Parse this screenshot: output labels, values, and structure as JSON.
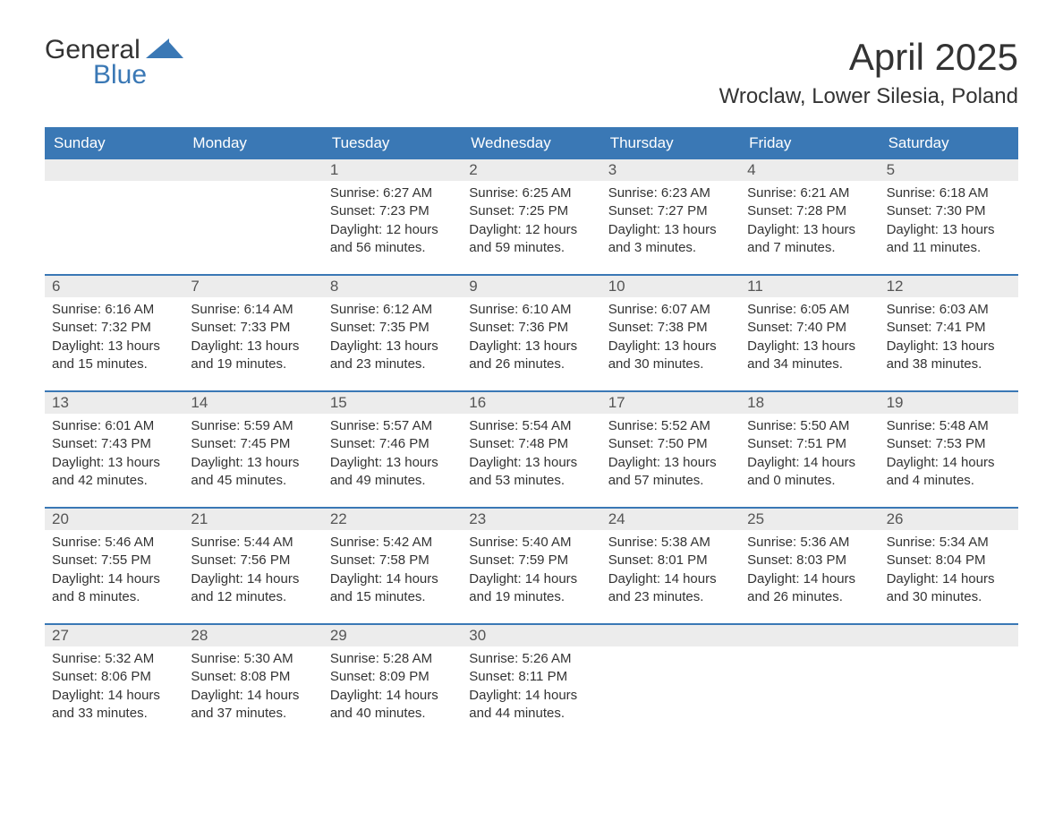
{
  "logo": {
    "word1": "General",
    "word2": "Blue"
  },
  "title": "April 2025",
  "location": "Wroclaw, Lower Silesia, Poland",
  "colors": {
    "header_bg": "#3a78b5",
    "header_text": "#ffffff",
    "date_row_bg": "#ececec",
    "body_text": "#333333",
    "logo_blue": "#3a78b5",
    "week_divider": "#3a78b5",
    "page_bg": "#ffffff"
  },
  "typography": {
    "title_fontsize": 42,
    "location_fontsize": 24,
    "header_fontsize": 17,
    "date_fontsize": 17,
    "body_fontsize": 15
  },
  "days_of_week": [
    "Sunday",
    "Monday",
    "Tuesday",
    "Wednesday",
    "Thursday",
    "Friday",
    "Saturday"
  ],
  "weeks": [
    [
      {},
      {},
      {
        "date": "1",
        "sunrise": "Sunrise: 6:27 AM",
        "sunset": "Sunset: 7:23 PM",
        "day1": "Daylight: 12 hours",
        "day2": "and 56 minutes."
      },
      {
        "date": "2",
        "sunrise": "Sunrise: 6:25 AM",
        "sunset": "Sunset: 7:25 PM",
        "day1": "Daylight: 12 hours",
        "day2": "and 59 minutes."
      },
      {
        "date": "3",
        "sunrise": "Sunrise: 6:23 AM",
        "sunset": "Sunset: 7:27 PM",
        "day1": "Daylight: 13 hours",
        "day2": "and 3 minutes."
      },
      {
        "date": "4",
        "sunrise": "Sunrise: 6:21 AM",
        "sunset": "Sunset: 7:28 PM",
        "day1": "Daylight: 13 hours",
        "day2": "and 7 minutes."
      },
      {
        "date": "5",
        "sunrise": "Sunrise: 6:18 AM",
        "sunset": "Sunset: 7:30 PM",
        "day1": "Daylight: 13 hours",
        "day2": "and 11 minutes."
      }
    ],
    [
      {
        "date": "6",
        "sunrise": "Sunrise: 6:16 AM",
        "sunset": "Sunset: 7:32 PM",
        "day1": "Daylight: 13 hours",
        "day2": "and 15 minutes."
      },
      {
        "date": "7",
        "sunrise": "Sunrise: 6:14 AM",
        "sunset": "Sunset: 7:33 PM",
        "day1": "Daylight: 13 hours",
        "day2": "and 19 minutes."
      },
      {
        "date": "8",
        "sunrise": "Sunrise: 6:12 AM",
        "sunset": "Sunset: 7:35 PM",
        "day1": "Daylight: 13 hours",
        "day2": "and 23 minutes."
      },
      {
        "date": "9",
        "sunrise": "Sunrise: 6:10 AM",
        "sunset": "Sunset: 7:36 PM",
        "day1": "Daylight: 13 hours",
        "day2": "and 26 minutes."
      },
      {
        "date": "10",
        "sunrise": "Sunrise: 6:07 AM",
        "sunset": "Sunset: 7:38 PM",
        "day1": "Daylight: 13 hours",
        "day2": "and 30 minutes."
      },
      {
        "date": "11",
        "sunrise": "Sunrise: 6:05 AM",
        "sunset": "Sunset: 7:40 PM",
        "day1": "Daylight: 13 hours",
        "day2": "and 34 minutes."
      },
      {
        "date": "12",
        "sunrise": "Sunrise: 6:03 AM",
        "sunset": "Sunset: 7:41 PM",
        "day1": "Daylight: 13 hours",
        "day2": "and 38 minutes."
      }
    ],
    [
      {
        "date": "13",
        "sunrise": "Sunrise: 6:01 AM",
        "sunset": "Sunset: 7:43 PM",
        "day1": "Daylight: 13 hours",
        "day2": "and 42 minutes."
      },
      {
        "date": "14",
        "sunrise": "Sunrise: 5:59 AM",
        "sunset": "Sunset: 7:45 PM",
        "day1": "Daylight: 13 hours",
        "day2": "and 45 minutes."
      },
      {
        "date": "15",
        "sunrise": "Sunrise: 5:57 AM",
        "sunset": "Sunset: 7:46 PM",
        "day1": "Daylight: 13 hours",
        "day2": "and 49 minutes."
      },
      {
        "date": "16",
        "sunrise": "Sunrise: 5:54 AM",
        "sunset": "Sunset: 7:48 PM",
        "day1": "Daylight: 13 hours",
        "day2": "and 53 minutes."
      },
      {
        "date": "17",
        "sunrise": "Sunrise: 5:52 AM",
        "sunset": "Sunset: 7:50 PM",
        "day1": "Daylight: 13 hours",
        "day2": "and 57 minutes."
      },
      {
        "date": "18",
        "sunrise": "Sunrise: 5:50 AM",
        "sunset": "Sunset: 7:51 PM",
        "day1": "Daylight: 14 hours",
        "day2": "and 0 minutes."
      },
      {
        "date": "19",
        "sunrise": "Sunrise: 5:48 AM",
        "sunset": "Sunset: 7:53 PM",
        "day1": "Daylight: 14 hours",
        "day2": "and 4 minutes."
      }
    ],
    [
      {
        "date": "20",
        "sunrise": "Sunrise: 5:46 AM",
        "sunset": "Sunset: 7:55 PM",
        "day1": "Daylight: 14 hours",
        "day2": "and 8 minutes."
      },
      {
        "date": "21",
        "sunrise": "Sunrise: 5:44 AM",
        "sunset": "Sunset: 7:56 PM",
        "day1": "Daylight: 14 hours",
        "day2": "and 12 minutes."
      },
      {
        "date": "22",
        "sunrise": "Sunrise: 5:42 AM",
        "sunset": "Sunset: 7:58 PM",
        "day1": "Daylight: 14 hours",
        "day2": "and 15 minutes."
      },
      {
        "date": "23",
        "sunrise": "Sunrise: 5:40 AM",
        "sunset": "Sunset: 7:59 PM",
        "day1": "Daylight: 14 hours",
        "day2": "and 19 minutes."
      },
      {
        "date": "24",
        "sunrise": "Sunrise: 5:38 AM",
        "sunset": "Sunset: 8:01 PM",
        "day1": "Daylight: 14 hours",
        "day2": "and 23 minutes."
      },
      {
        "date": "25",
        "sunrise": "Sunrise: 5:36 AM",
        "sunset": "Sunset: 8:03 PM",
        "day1": "Daylight: 14 hours",
        "day2": "and 26 minutes."
      },
      {
        "date": "26",
        "sunrise": "Sunrise: 5:34 AM",
        "sunset": "Sunset: 8:04 PM",
        "day1": "Daylight: 14 hours",
        "day2": "and 30 minutes."
      }
    ],
    [
      {
        "date": "27",
        "sunrise": "Sunrise: 5:32 AM",
        "sunset": "Sunset: 8:06 PM",
        "day1": "Daylight: 14 hours",
        "day2": "and 33 minutes."
      },
      {
        "date": "28",
        "sunrise": "Sunrise: 5:30 AM",
        "sunset": "Sunset: 8:08 PM",
        "day1": "Daylight: 14 hours",
        "day2": "and 37 minutes."
      },
      {
        "date": "29",
        "sunrise": "Sunrise: 5:28 AM",
        "sunset": "Sunset: 8:09 PM",
        "day1": "Daylight: 14 hours",
        "day2": "and 40 minutes."
      },
      {
        "date": "30",
        "sunrise": "Sunrise: 5:26 AM",
        "sunset": "Sunset: 8:11 PM",
        "day1": "Daylight: 14 hours",
        "day2": "and 44 minutes."
      },
      {},
      {},
      {}
    ]
  ]
}
